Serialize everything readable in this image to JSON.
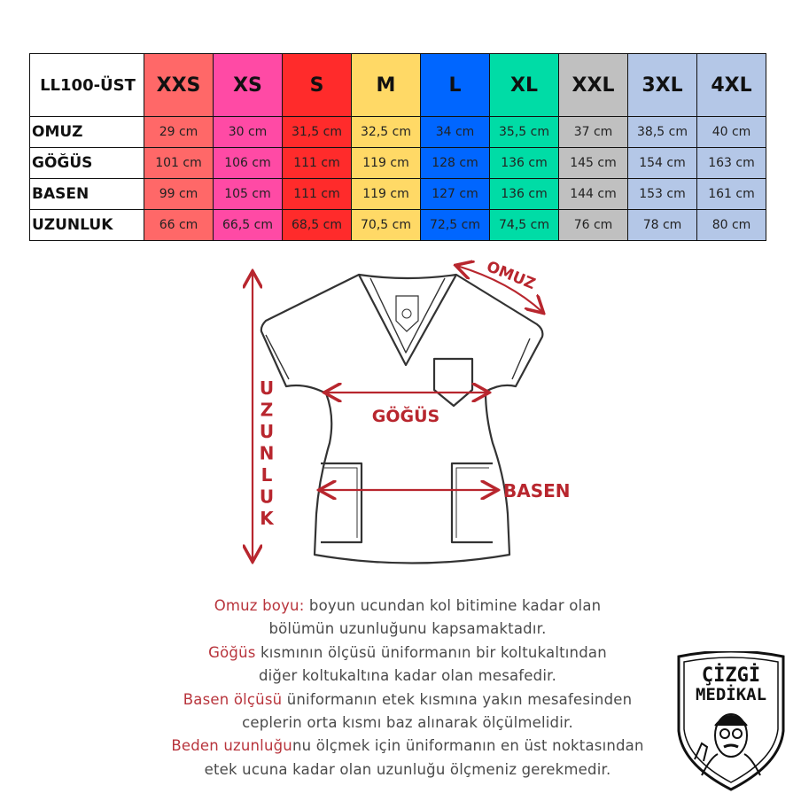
{
  "table": {
    "corner_label": "LL100-ÜST",
    "sizes": [
      {
        "label": "XXS",
        "color": "#ff6868"
      },
      {
        "label": "XS",
        "color": "#ff4aa5"
      },
      {
        "label": "S",
        "color": "#ff2b2b"
      },
      {
        "label": "M",
        "color": "#ffd966"
      },
      {
        "label": "L",
        "color": "#0066ff"
      },
      {
        "label": "XL",
        "color": "#00dca6"
      },
      {
        "label": "XXL",
        "color": "#c0c0c0"
      },
      {
        "label": "3XL",
        "color": "#b4c7e7"
      },
      {
        "label": "4XL",
        "color": "#b4c7e7"
      }
    ],
    "rows": [
      {
        "label": "OMUZ",
        "values": [
          "29 cm",
          "30 cm",
          "31,5 cm",
          "32,5 cm",
          "34 cm",
          "35,5 cm",
          "37 cm",
          "38,5 cm",
          "40 cm"
        ]
      },
      {
        "label": "GÖĞÜS",
        "values": [
          "101 cm",
          "106 cm",
          "111 cm",
          "119 cm",
          "128 cm",
          "136 cm",
          "145 cm",
          "154 cm",
          "163 cm"
        ]
      },
      {
        "label": "BASEN",
        "values": [
          "99 cm",
          "105 cm",
          "111 cm",
          "119 cm",
          "127 cm",
          "136 cm",
          "144 cm",
          "153 cm",
          "161 cm"
        ]
      },
      {
        "label": "UZUNLUK",
        "values": [
          "66 cm",
          "66,5 cm",
          "68,5 cm",
          "70,5 cm",
          "72,5 cm",
          "74,5 cm",
          "76 cm",
          "78 cm",
          "80 cm"
        ]
      }
    ]
  },
  "diagram": {
    "accent_color": "#b8262e",
    "omuz": "OMUZ",
    "gogus": "GÖĞÜS",
    "basen": "BASEN",
    "uzunluk": "UZUNLUK"
  },
  "description": [
    {
      "highlight": "Omuz boyu:",
      "text": " boyun ucundan kol bitimine kadar olan"
    },
    {
      "highlight": "",
      "text": "bölümün uzunluğunu kapsamaktadır."
    },
    {
      "highlight": "Göğüs",
      "text": " kısmının ölçüsü üniformanın bir koltukaltından"
    },
    {
      "highlight": "",
      "text": "diğer koltukaltına kadar olan mesafedir."
    },
    {
      "highlight": "Basen ölçüsü",
      "text": " üniformanın etek kısmına yakın mesafesinden"
    },
    {
      "highlight": "",
      "text": "ceplerin orta kısmı baz alınarak ölçülmelidir."
    },
    {
      "highlight": "Beden uzunluğu",
      "text": "nu ölçmek için üniformanın en üst noktasından"
    },
    {
      "highlight": "",
      "text": "etek ucuna kadar olan uzunluğu ölçmeniz gerekmedir."
    }
  ],
  "logo": {
    "line1": "ÇİZGİ",
    "line2": "MEDİKAL"
  }
}
